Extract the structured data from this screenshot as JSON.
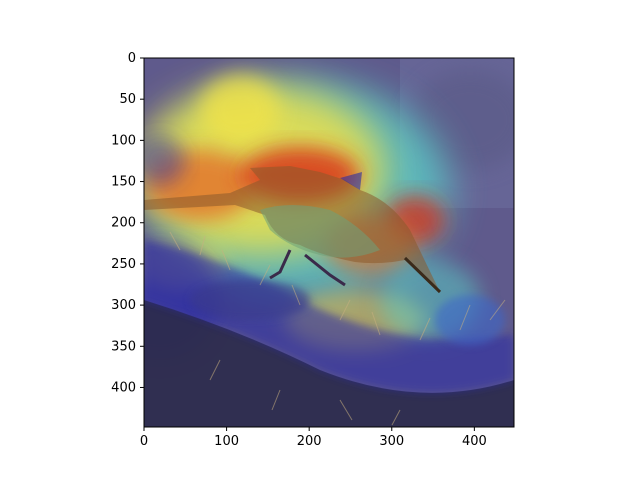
{
  "figure": {
    "description_kind": "heatmap overlay on photograph",
    "x_ticks": [
      "0",
      "100",
      "200",
      "300",
      "400"
    ],
    "y_ticks": [
      "0",
      "50",
      "100",
      "150",
      "200",
      "250",
      "300",
      "350",
      "400"
    ],
    "x_tick_values": [
      0,
      100,
      200,
      300,
      400
    ],
    "y_tick_values": [
      0,
      50,
      100,
      150,
      200,
      250,
      300,
      350,
      400
    ],
    "xlim": [
      0,
      448
    ],
    "ylim": [
      448,
      0
    ],
    "colormap": "jet",
    "colors": {
      "background_sky": "#5f5a8c",
      "heat_red": "#d92b16",
      "heat_yellow": "#f0e24a",
      "heat_cyan": "#58d2c8",
      "heat_blue": "#2a2ca6",
      "cactus_dark": "#2b2a4a",
      "bird_body": "#8a5a2c"
    }
  }
}
